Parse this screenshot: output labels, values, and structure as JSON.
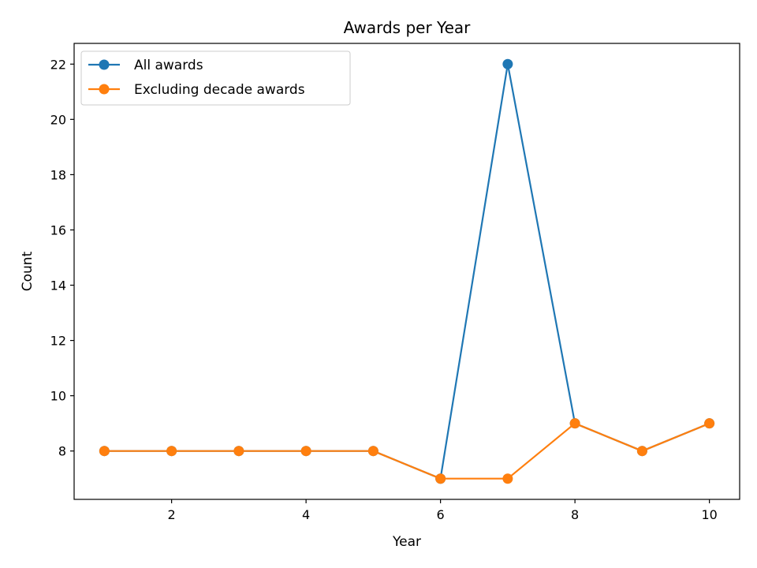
{
  "chart_data": {
    "type": "line",
    "title": "Awards per Year",
    "xlabel": "Year",
    "ylabel": "Count",
    "x": [
      1,
      2,
      3,
      4,
      5,
      6,
      7,
      8,
      9,
      10
    ],
    "xlim": [
      0.55,
      10.45
    ],
    "ylim": [
      6.25,
      22.75
    ],
    "xticks": [
      2,
      4,
      6,
      8,
      10
    ],
    "yticks": [
      8,
      10,
      12,
      14,
      16,
      18,
      20,
      22
    ],
    "grid": false,
    "legend_position": "top-left",
    "series": [
      {
        "name": "All awards",
        "color": "#1f77b4",
        "values": [
          8,
          8,
          8,
          8,
          8,
          7,
          22,
          9,
          8,
          9
        ]
      },
      {
        "name": "Excluding decade awards",
        "color": "#ff7f0e",
        "values": [
          8,
          8,
          8,
          8,
          8,
          7,
          7,
          9,
          8,
          9
        ]
      }
    ]
  }
}
